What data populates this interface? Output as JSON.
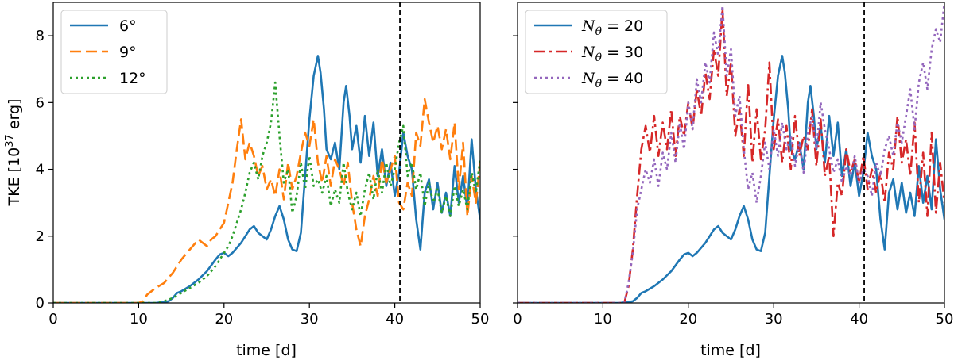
{
  "chart_data": [
    {
      "type": "line",
      "xlabel": "time [d]",
      "ylabel": "TKE [10",
      "ylabel_sup": "37",
      "ylabel_tail": " erg]",
      "xlim": [
        0,
        50
      ],
      "ylim": [
        0,
        9
      ],
      "xticks": [
        "0",
        "10",
        "20",
        "30",
        "40",
        "50"
      ],
      "yticks": [
        "0",
        "2",
        "4",
        "6",
        "8"
      ],
      "vline_x": 40.6,
      "legend_position": "top-left",
      "series": [
        {
          "name": "6°",
          "color": "#1f77b4",
          "style": "solid",
          "x": [
            0,
            12,
            13.5,
            14,
            14.5,
            15,
            16,
            17,
            18,
            19,
            19.5,
            20,
            20.5,
            21,
            22,
            23,
            23.5,
            24,
            25,
            25.5,
            26,
            26.5,
            27,
            27.5,
            28,
            28.5,
            29,
            29.5,
            30,
            30.5,
            31,
            31.3,
            31.7,
            32,
            32.5,
            33,
            33.5,
            34,
            34.3,
            34.7,
            35,
            35.5,
            36,
            36.5,
            37,
            37.5,
            38,
            38.5,
            39,
            39.5,
            40,
            40.5,
            41,
            41.5,
            42,
            42.5,
            43,
            43.5,
            44,
            44.5,
            45,
            45.5,
            46,
            46.5,
            47,
            47.5,
            48,
            48.5,
            49,
            49.5,
            50
          ],
          "y": [
            0,
            0,
            0.05,
            0.15,
            0.3,
            0.35,
            0.5,
            0.7,
            0.95,
            1.3,
            1.45,
            1.5,
            1.4,
            1.5,
            1.8,
            2.2,
            2.3,
            2.1,
            1.9,
            2.2,
            2.6,
            2.9,
            2.5,
            1.9,
            1.6,
            1.55,
            2.1,
            3.8,
            5.5,
            6.8,
            7.4,
            6.9,
            5.8,
            4.6,
            4.3,
            4.8,
            4.0,
            6.0,
            6.5,
            5.6,
            4.6,
            5.3,
            4.2,
            5.6,
            4.4,
            5.4,
            3.8,
            4.6,
            3.5,
            4.2,
            3.2,
            3.9,
            5.1,
            4.4,
            4.0,
            2.5,
            1.6,
            3.3,
            3.7,
            2.8,
            3.6,
            2.7,
            3.3,
            2.6,
            4.1,
            3.0,
            3.8,
            2.8,
            4.9,
            3.4,
            2.5
          ]
        },
        {
          "name": "9°",
          "color": "#ff7f0e",
          "style": "dashed",
          "x": [
            0,
            10,
            10.5,
            11,
            12,
            13,
            14,
            15,
            16,
            17,
            17.5,
            18,
            18.5,
            19,
            20,
            20.5,
            21,
            21.5,
            22,
            22.5,
            23,
            23.5,
            24,
            24.5,
            25,
            25.5,
            26,
            26.5,
            27,
            27.5,
            28,
            28.5,
            29,
            29.5,
            30,
            30.5,
            31,
            31.5,
            32,
            32.5,
            33,
            33.5,
            34,
            34.5,
            35,
            35.5,
            36,
            36.5,
            37,
            37.5,
            38,
            38.5,
            39,
            39.5,
            40,
            40.5,
            41,
            41.5,
            42,
            42.5,
            43,
            43.5,
            44,
            44.5,
            45,
            45.5,
            46,
            46.5,
            47,
            47.5,
            48,
            48.5,
            49,
            49.5,
            50
          ],
          "y": [
            0,
            0,
            0.05,
            0.25,
            0.45,
            0.6,
            0.9,
            1.3,
            1.6,
            1.9,
            1.8,
            1.7,
            1.9,
            2.0,
            2.4,
            3.0,
            3.6,
            4.6,
            5.5,
            4.3,
            4.8,
            4.4,
            3.8,
            4.1,
            3.4,
            3.7,
            3.2,
            4.0,
            3.1,
            4.2,
            3.4,
            3.8,
            4.5,
            5.1,
            4.7,
            5.5,
            4.2,
            3.6,
            4.4,
            3.5,
            4.3,
            4.0,
            3.5,
            4.2,
            3.0,
            2.2,
            1.7,
            2.6,
            3.1,
            3.8,
            3.2,
            4.3,
            3.6,
            4.0,
            4.4,
            3.0,
            2.8,
            3.6,
            3.2,
            5.1,
            4.7,
            6.1,
            5.4,
            4.8,
            5.3,
            4.6,
            5.2,
            4.3,
            5.4,
            3.4,
            4.8,
            2.6,
            3.8,
            3.0,
            4.2
          ]
        },
        {
          "name": "12°",
          "color": "#2ca02c",
          "style": "dotted",
          "x": [
            0,
            12,
            13,
            14,
            15,
            16,
            17,
            18,
            19,
            20,
            20.5,
            21,
            22,
            22.5,
            23,
            23.5,
            24,
            24.5,
            25,
            25.5,
            26,
            26.5,
            27,
            27.5,
            28,
            28.5,
            29,
            29.5,
            30,
            30.5,
            31,
            31.5,
            32,
            32.5,
            33,
            33.5,
            34,
            34.5,
            35,
            35.5,
            36,
            36.5,
            37,
            37.5,
            38,
            38.5,
            39,
            39.5,
            40,
            40.5,
            41,
            41.5,
            42,
            42.5,
            43,
            43.5,
            44,
            44.5,
            45,
            45.5,
            46,
            46.5,
            47,
            47.5,
            48,
            48.5,
            49,
            49.5,
            50
          ],
          "y": [
            0,
            0,
            0.05,
            0.15,
            0.3,
            0.45,
            0.6,
            0.8,
            1.1,
            1.5,
            1.7,
            2.0,
            2.8,
            3.3,
            3.9,
            4.2,
            3.7,
            4.4,
            4.8,
            5.4,
            6.6,
            5.0,
            3.6,
            4.0,
            2.7,
            3.2,
            4.2,
            3.4,
            4.4,
            3.5,
            3.7,
            3.3,
            3.8,
            2.9,
            3.4,
            3.0,
            4.2,
            3.3,
            2.8,
            3.3,
            2.6,
            3.4,
            3.9,
            3.1,
            4.0,
            3.3,
            4.2,
            3.5,
            4.0,
            4.8,
            5.3,
            3.8,
            4.2,
            3.4,
            3.9,
            2.9,
            3.6,
            3.0,
            3.4,
            2.7,
            3.2,
            2.6,
            3.5,
            2.9,
            3.4,
            2.8,
            3.9,
            3.3,
            4.3
          ]
        }
      ]
    },
    {
      "type": "line",
      "xlabel": "time [d]",
      "xlim": [
        0,
        50
      ],
      "ylim": [
        0,
        9
      ],
      "xticks": [
        "0",
        "10",
        "20",
        "30",
        "40",
        "50"
      ],
      "vline_x": 40.6,
      "legend_position": "top-left",
      "series": [
        {
          "name_var": "N",
          "name_sub": "θ",
          "name_val": " = 20",
          "color": "#1f77b4",
          "style": "solid",
          "x": [
            0,
            12,
            13.5,
            14,
            14.5,
            15,
            16,
            17,
            18,
            19,
            19.5,
            20,
            20.5,
            21,
            22,
            23,
            23.5,
            24,
            25,
            25.5,
            26,
            26.5,
            27,
            27.5,
            28,
            28.5,
            29,
            29.5,
            30,
            30.5,
            31,
            31.3,
            31.7,
            32,
            32.5,
            33,
            33.5,
            34,
            34.3,
            34.7,
            35,
            35.5,
            36,
            36.5,
            37,
            37.5,
            38,
            38.5,
            39,
            39.5,
            40,
            40.5,
            41,
            41.5,
            42,
            42.5,
            43,
            43.5,
            44,
            44.5,
            45,
            45.5,
            46,
            46.5,
            47,
            47.5,
            48,
            48.5,
            49,
            49.5,
            50
          ],
          "y": [
            0,
            0,
            0.05,
            0.15,
            0.3,
            0.35,
            0.5,
            0.7,
            0.95,
            1.3,
            1.45,
            1.5,
            1.4,
            1.5,
            1.8,
            2.2,
            2.3,
            2.1,
            1.9,
            2.2,
            2.6,
            2.9,
            2.5,
            1.9,
            1.6,
            1.55,
            2.1,
            3.8,
            5.5,
            6.8,
            7.4,
            6.9,
            5.8,
            4.6,
            4.3,
            4.8,
            4.0,
            6.0,
            6.5,
            5.6,
            4.6,
            5.3,
            4.2,
            5.6,
            4.4,
            5.4,
            3.8,
            4.6,
            3.5,
            4.2,
            3.2,
            3.9,
            5.1,
            4.4,
            4.0,
            2.5,
            1.6,
            3.3,
            3.7,
            2.8,
            3.6,
            2.7,
            3.3,
            2.6,
            4.1,
            3.0,
            3.8,
            2.8,
            4.9,
            3.4,
            2.5
          ]
        },
        {
          "name_var": "N",
          "name_sub": "θ",
          "name_val": " = 30",
          "color": "#d62728",
          "style": "dashdot",
          "x": [
            0,
            12.5,
            13,
            13.5,
            14,
            14.5,
            15,
            15.5,
            16,
            16.5,
            17,
            17.5,
            18,
            18.5,
            19,
            19.5,
            20,
            20.5,
            21,
            21.5,
            22,
            22.5,
            23,
            23.5,
            24,
            24.5,
            25,
            25.5,
            26,
            26.5,
            27,
            27.5,
            28,
            28.5,
            29,
            29.5,
            30,
            30.5,
            31,
            31.5,
            32,
            32.5,
            33,
            33.5,
            34,
            34.5,
            35,
            35.5,
            36,
            36.5,
            37,
            37.5,
            38,
            38.5,
            39,
            39.5,
            40,
            40.5,
            41,
            41.5,
            42,
            42.5,
            43,
            43.5,
            44,
            44.5,
            45,
            45.5,
            46,
            46.5,
            47,
            47.5,
            48,
            48.5,
            49,
            49.5,
            50
          ],
          "y": [
            0,
            0,
            0.5,
            1.6,
            3.2,
            4.6,
            5.3,
            4.5,
            5.6,
            4.4,
            5.4,
            4.6,
            5.8,
            4.4,
            5.6,
            5.0,
            6.0,
            5.2,
            6.4,
            5.6,
            6.9,
            6.1,
            7.6,
            6.8,
            8.8,
            6.2,
            7.2,
            5.0,
            5.8,
            4.4,
            6.6,
            4.2,
            5.8,
            4.3,
            5.2,
            7.2,
            4.6,
            5.5,
            4.2,
            5.3,
            4.0,
            5.6,
            4.4,
            5.0,
            4.6,
            5.8,
            4.1,
            5.5,
            3.8,
            4.4,
            2.0,
            3.6,
            3.2,
            4.6,
            3.9,
            4.3,
            3.6,
            4.4,
            3.4,
            4.0,
            3.3,
            3.9,
            3.0,
            4.5,
            4.0,
            5.6,
            4.2,
            4.9,
            3.8,
            5.4,
            3.0,
            4.5,
            2.6,
            5.1,
            2.7,
            4.2,
            3.0
          ]
        },
        {
          "name_var": "N",
          "name_sub": "θ",
          "name_val": " = 40",
          "color": "#9467bd",
          "style": "dotted",
          "x": [
            0,
            12.5,
            13,
            13.5,
            14,
            14.5,
            15,
            15.5,
            16,
            16.5,
            17,
            17.5,
            18,
            18.5,
            19,
            19.5,
            20,
            20.5,
            21,
            21.5,
            22,
            22.5,
            23,
            23.5,
            24,
            24.5,
            25,
            25.5,
            26,
            26.5,
            27,
            27.5,
            28,
            28.5,
            29,
            29.5,
            30,
            30.5,
            31,
            31.5,
            32,
            32.5,
            33,
            33.5,
            34,
            34.5,
            35,
            35.5,
            36,
            36.5,
            37,
            37.5,
            38,
            38.5,
            39,
            39.5,
            40,
            40.5,
            41,
            41.5,
            42,
            42.5,
            43,
            43.5,
            44,
            44.5,
            45,
            45.5,
            46,
            46.5,
            47,
            47.5,
            48,
            48.5,
            49,
            49.5,
            50
          ],
          "y": [
            0,
            0,
            0.6,
            1.5,
            2.8,
            3.4,
            4.0,
            3.6,
            4.3,
            3.5,
            4.5,
            4.0,
            5.1,
            4.2,
            5.4,
            4.6,
            6.0,
            5.2,
            6.7,
            6.0,
            7.2,
            6.6,
            8.1,
            7.4,
            8.9,
            6.8,
            7.6,
            5.6,
            6.2,
            4.6,
            3.4,
            3.9,
            3.0,
            3.8,
            4.8,
            4.0,
            5.2,
            4.4,
            5.4,
            4.6,
            5.0,
            4.1,
            4.8,
            3.9,
            5.1,
            5.6,
            4.6,
            6.0,
            5.2,
            4.6,
            3.9,
            4.3,
            3.6,
            4.1,
            3.8,
            4.4,
            3.6,
            4.0,
            3.8,
            3.2,
            4.2,
            3.8,
            4.6,
            5.0,
            4.4,
            5.4,
            4.8,
            5.6,
            6.4,
            5.2,
            6.6,
            7.2,
            6.4,
            7.6,
            8.2,
            7.8,
            9.0
          ]
        }
      ]
    }
  ]
}
